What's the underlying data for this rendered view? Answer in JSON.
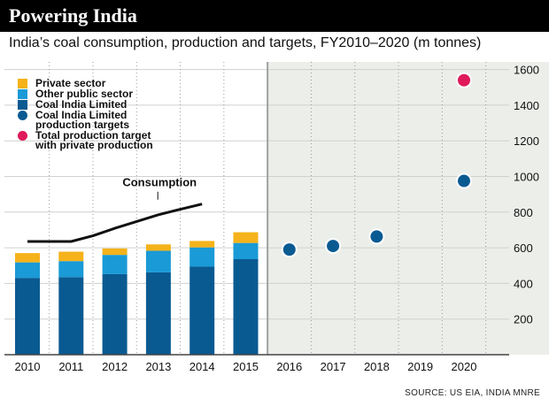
{
  "header": {
    "title": "Powering India",
    "subtitle": "India’s coal consumption, production and targets, FY2010–2020 (m tonnes)"
  },
  "source": "SOURCE: US EIA, INDIA MNRE",
  "colors": {
    "private": "#f5b21a",
    "other_public": "#1a9ad6",
    "coal_india": "#0a5a92",
    "target_total": "#e0195a",
    "forecast_panel": "#eceeea",
    "consumption_line": "#111111"
  },
  "chart_data": {
    "type": "bar",
    "title": "Powering India",
    "subtitle": "India’s coal consumption, production and targets, FY2010–2020 (m tonnes)",
    "categories": [
      "2010",
      "2011",
      "2012",
      "2013",
      "2014",
      "2015",
      "2016",
      "2017",
      "2018",
      "2019",
      "2020"
    ],
    "ylim": [
      0,
      1700
    ],
    "yticks": [
      200,
      400,
      600,
      800,
      1000,
      1200,
      1400,
      1600
    ],
    "y_axis_side": "right",
    "grid": true,
    "forecast_from": "2016",
    "stacked_series": [
      {
        "name": "Coal India Limited",
        "values": [
          431,
          435,
          452,
          462,
          494,
          536
        ]
      },
      {
        "name": "Other public sector",
        "values": [
          87,
          90,
          108,
          121,
          108,
          91
        ]
      },
      {
        "name": "Private sector",
        "values": [
          52,
          53,
          36,
          36,
          36,
          60
        ]
      }
    ],
    "line_series": [
      {
        "name": "Consumption",
        "label": "Consumption",
        "x": [
          2010,
          2011,
          2011.5,
          2012,
          2013,
          2013.4,
          2014
        ],
        "values": [
          635,
          635,
          667,
          709,
          785,
          810,
          845
        ]
      }
    ],
    "point_series": [
      {
        "name": "Coal India Limited production targets",
        "x": [
          "2016",
          "2017",
          "2018",
          "2020"
        ],
        "values": [
          590,
          610,
          663,
          975
        ]
      },
      {
        "name": "Total production target with private production",
        "x": [
          "2020"
        ],
        "values": [
          1540
        ]
      }
    ],
    "legend": {
      "position": "top-left",
      "items": [
        {
          "label": "Private sector",
          "shape": "square",
          "color": "#f5b21a"
        },
        {
          "label": "Other public sector",
          "shape": "square",
          "color": "#1a9ad6"
        },
        {
          "label": "Coal India Limited",
          "shape": "square",
          "color": "#0a5a92"
        },
        {
          "label": "Coal India Limited",
          "label2": "production targets",
          "shape": "circle",
          "color": "#0a5a92"
        },
        {
          "label": "Total production target",
          "label2": "with private production",
          "shape": "circle",
          "color": "#e0195a"
        }
      ]
    }
  }
}
